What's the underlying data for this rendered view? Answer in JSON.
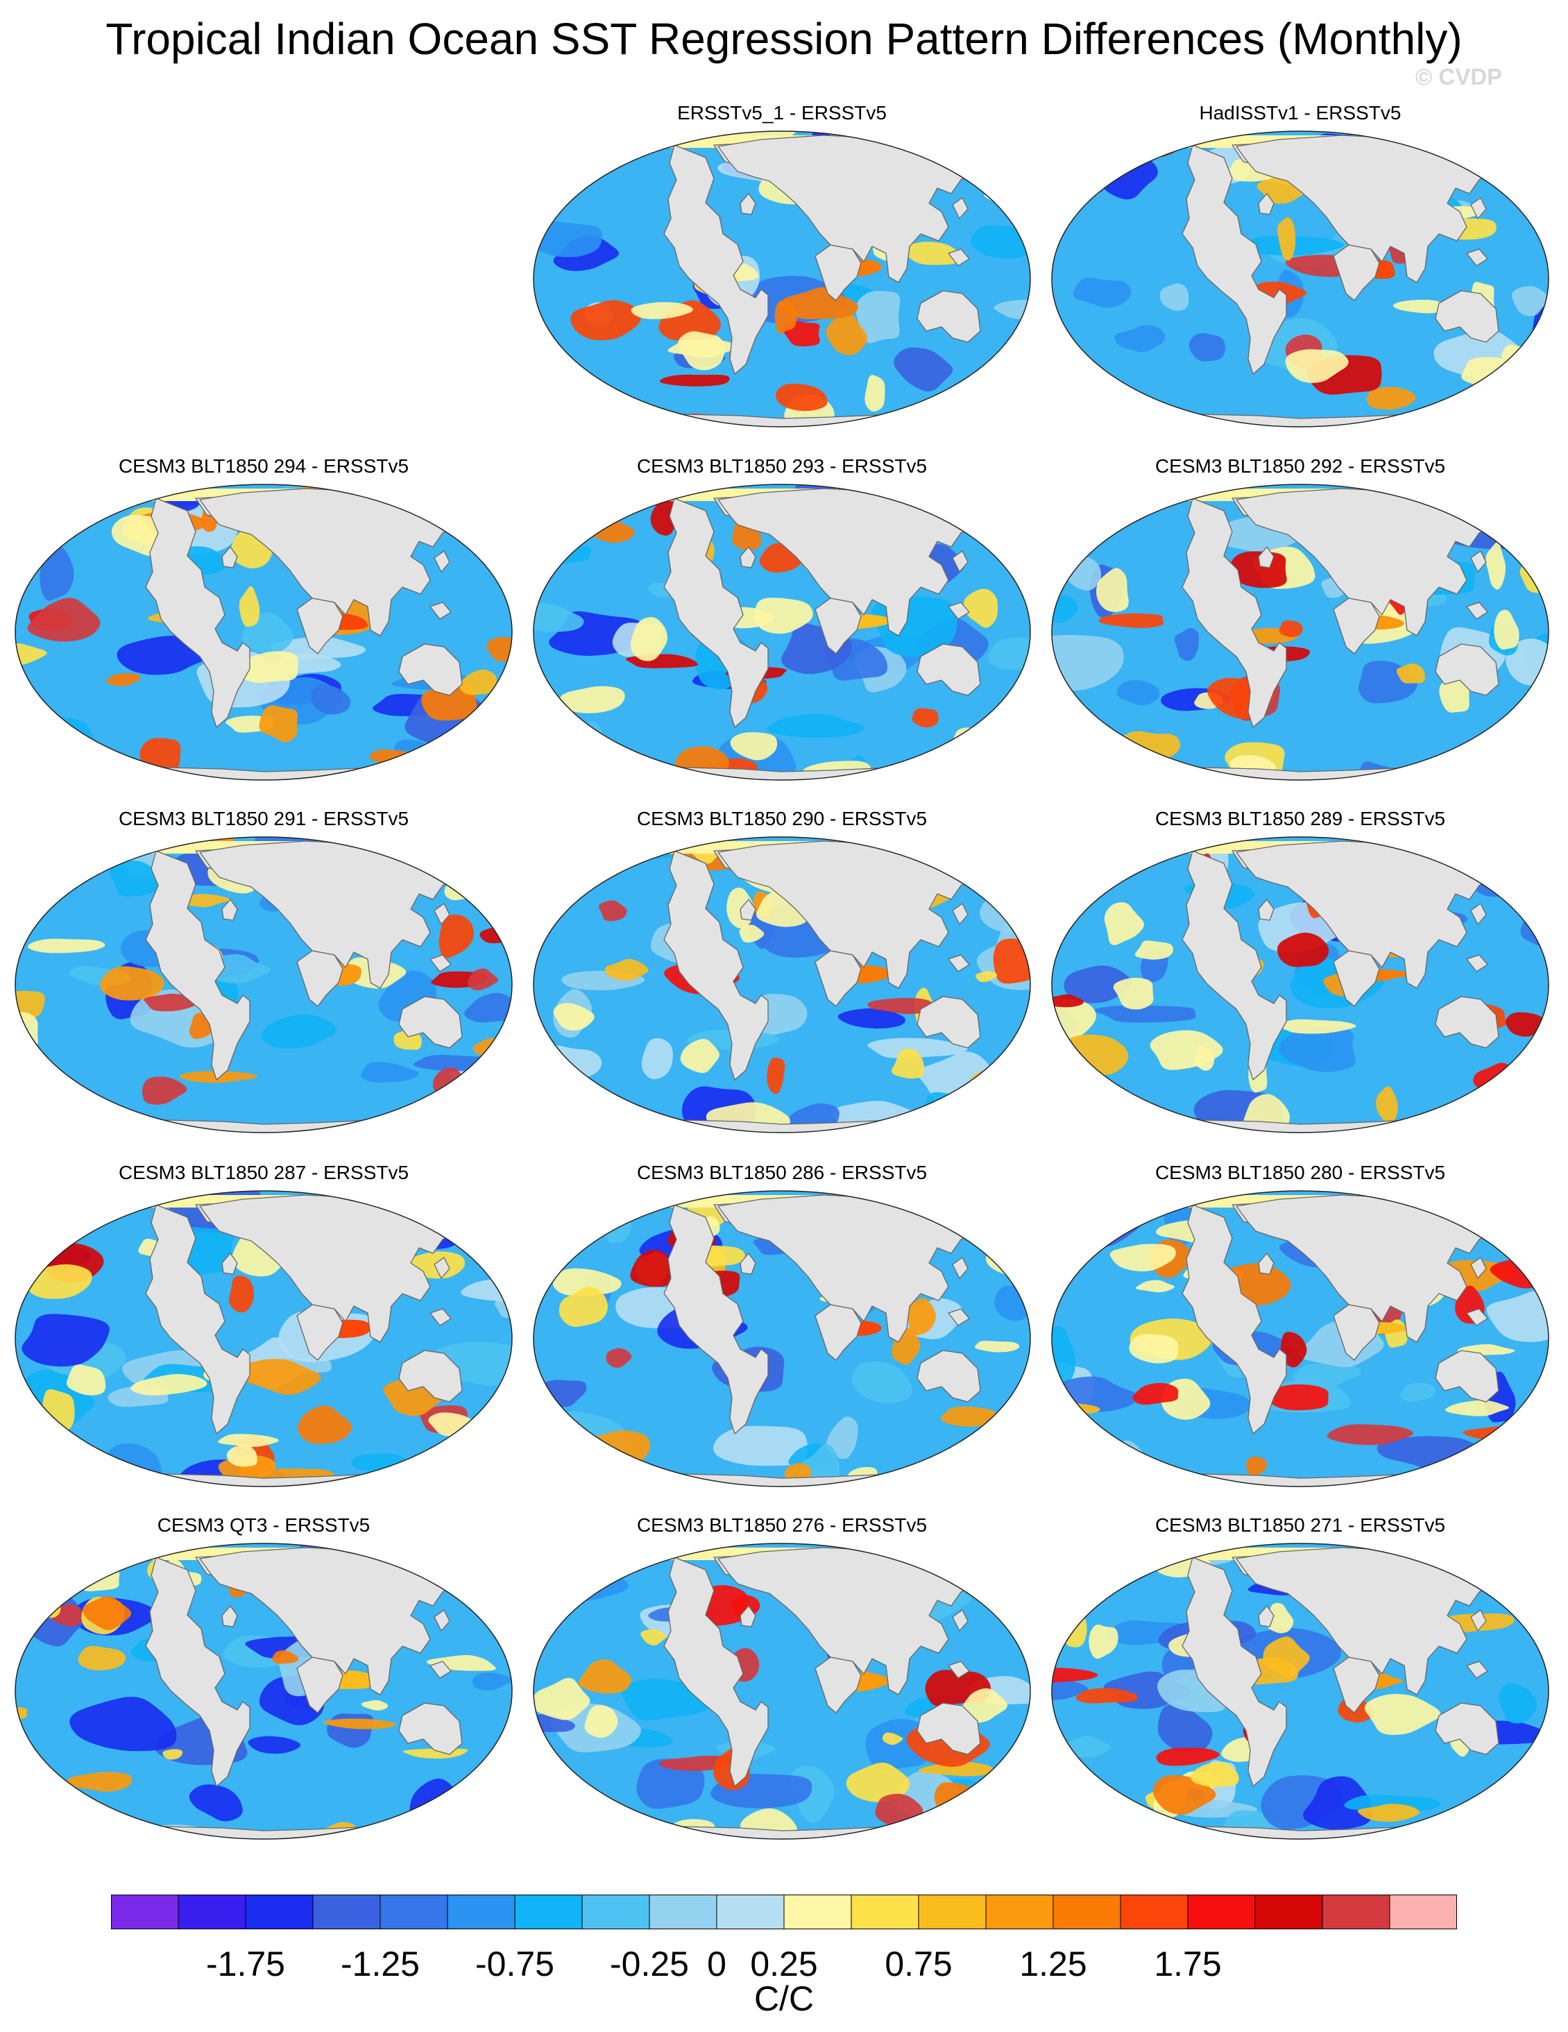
{
  "title": "Tropical Indian Ocean SST Regression Pattern Differences (Monthly)",
  "watermark": "© CVDP",
  "chart_data": {
    "type": "contour-map-panels",
    "projection": "Robinson (global)",
    "panels": [
      {
        "title": "ERSSTv5_1 - ERSSTv5"
      },
      {
        "title": "HadISSTv1 - ERSSTv5"
      },
      {
        "title": "CESM3 BLT1850 294 - ERSSTv5"
      },
      {
        "title": "CESM3 BLT1850 293 - ERSSTv5"
      },
      {
        "title": "CESM3 BLT1850 292 - ERSSTv5"
      },
      {
        "title": "CESM3 BLT1850 291 - ERSSTv5"
      },
      {
        "title": "CESM3 BLT1850 290 - ERSSTv5"
      },
      {
        "title": "CESM3 BLT1850 289 - ERSSTv5"
      },
      {
        "title": "CESM3 BLT1850 287 - ERSSTv5"
      },
      {
        "title": "CESM3 BLT1850 286 - ERSSTv5"
      },
      {
        "title": "CESM3 BLT1850 280 - ERSSTv5"
      },
      {
        "title": "CESM3 QT3 - ERSSTv5"
      },
      {
        "title": "CESM3 BLT1850 276 - ERSSTv5"
      },
      {
        "title": "CESM3 BLT1850 271 - ERSSTv5"
      }
    ],
    "colorbar": {
      "units": "C/C",
      "levels": [
        -2,
        -1.75,
        -1.5,
        -1.25,
        -1,
        -0.75,
        -0.5,
        -0.25,
        0,
        0.25,
        0.5,
        0.75,
        1,
        1.25,
        1.5,
        1.75,
        2
      ],
      "tick_labels": [
        "-1.75",
        "-1.25",
        "-0.75",
        "-0.25",
        "0",
        "0.25",
        "0.75",
        "1.25",
        "1.75"
      ],
      "tick_values": [
        -1.75,
        -1.25,
        -0.75,
        -0.25,
        0,
        0.25,
        0.75,
        1.25,
        1.75
      ],
      "colors": [
        "#7a2ae8",
        "#3a1ef0",
        "#1a2cf0",
        "#3a62e0",
        "#3576ea",
        "#2b93f2",
        "#0fb3f6",
        "#4ec2f2",
        "#93d1ef",
        "#b6def3",
        "#fdf6a4",
        "#fde14a",
        "#fbbc1e",
        "#fb9a0d",
        "#fa7b06",
        "#fc4508",
        "#f7100d",
        "#d60607",
        "#d43a3e",
        "#fcb1b1"
      ]
    }
  }
}
